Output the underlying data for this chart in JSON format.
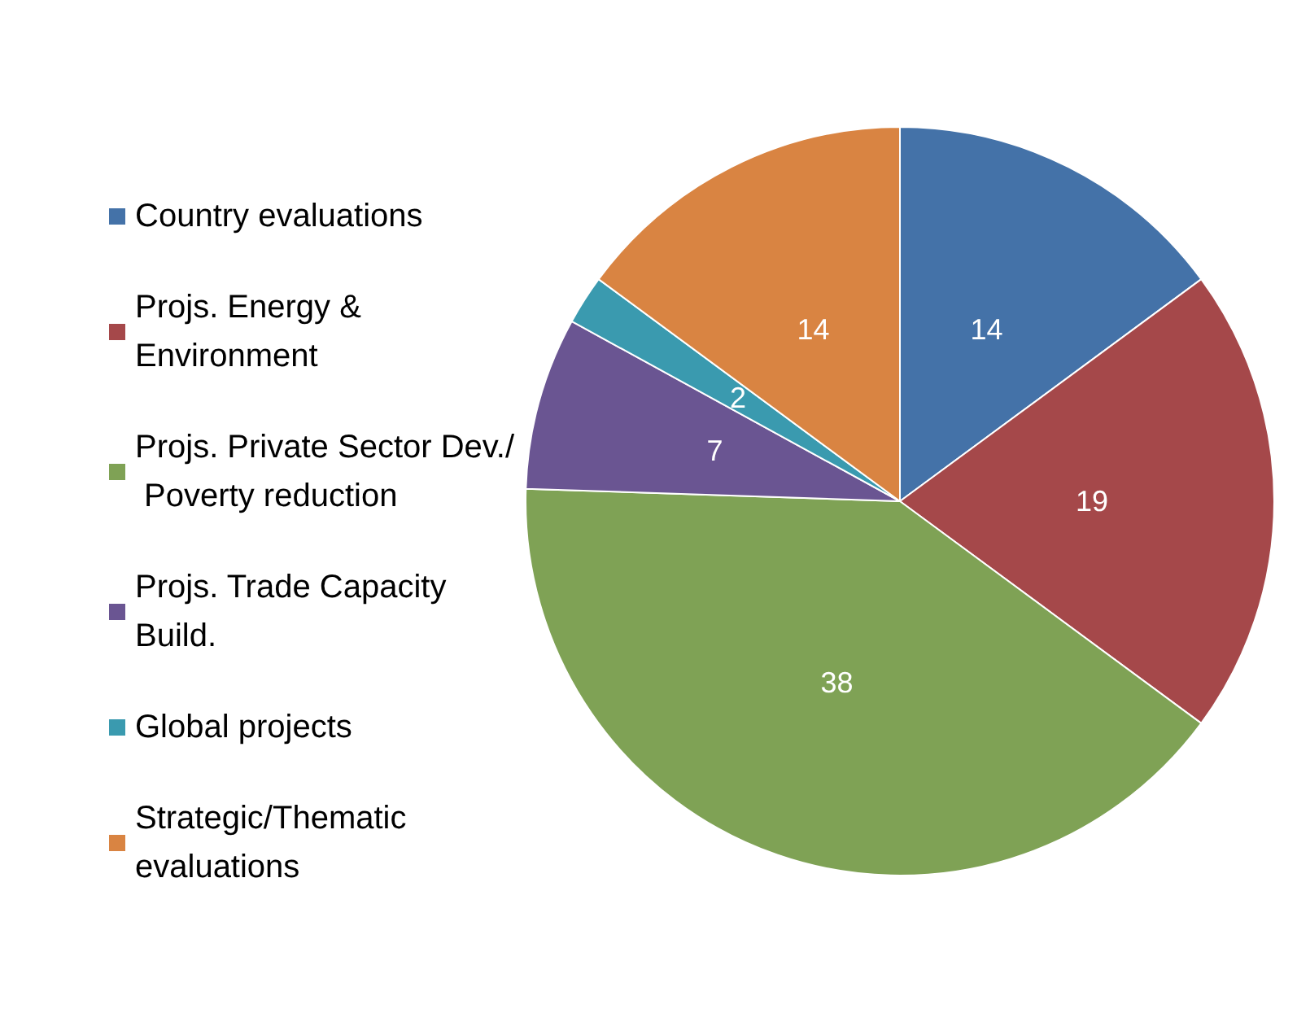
{
  "chart_data": {
    "type": "pie",
    "categories": [
      "Country evaluations",
      "Projs. Energy & Environment",
      "Projs. Private Sector Dev./ Poverty reduction",
      "Projs. Trade Capacity Build.",
      "Global projects",
      "Strategic/Thematic evaluations"
    ],
    "values": [
      14,
      19,
      38,
      7,
      2,
      14
    ],
    "colors": [
      "#4472a8",
      "#a5484a",
      "#7fa255",
      "#6a5592",
      "#3a9aaf",
      "#d98442"
    ],
    "data_labels": true,
    "legend": "left"
  }
}
